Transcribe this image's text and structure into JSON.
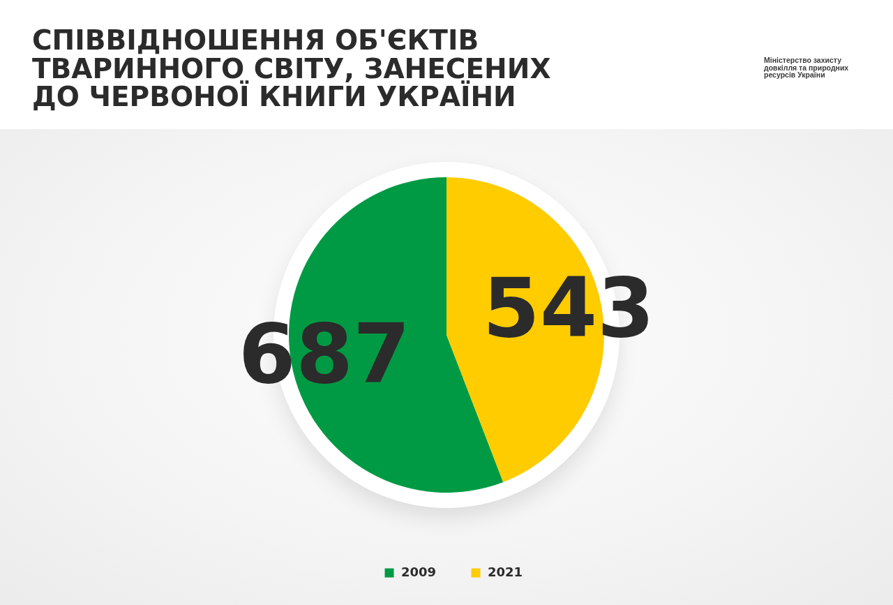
{
  "chart_data": {
    "type": "pie",
    "title": "СПІВВІДНОШЕННЯ ОБ'ЄКТІВ ТВАРИННОГО СВІТУ, ЗАНЕСЕНИХ ДО ЧЕРВОНОЇ КНИГИ УКРАЇНИ",
    "annotations": [
      "Міністерство захисту довкілля та природних ресурсів України"
    ],
    "categories": [
      "2009",
      "2021"
    ],
    "values": [
      687,
      543
    ],
    "colors": [
      "#009a44",
      "#ffcc00"
    ],
    "data_labels": true,
    "legend": "bottom"
  }
}
